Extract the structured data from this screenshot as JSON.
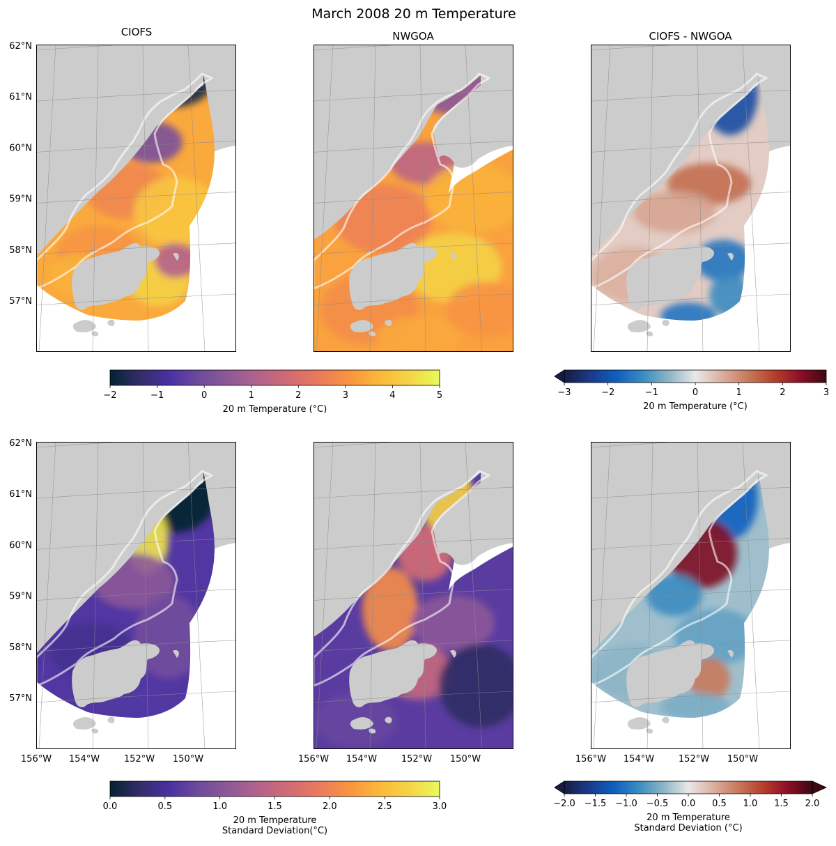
{
  "figure": {
    "title": "March 2008 20 m Temperature",
    "panel_titles": [
      "CIOFS",
      "NWGOA",
      "CIOFS - NWGOA"
    ]
  },
  "map_axes": {
    "lat_ticks": [
      "62°N",
      "61°N",
      "60°N",
      "59°N",
      "58°N",
      "57°N"
    ],
    "lon_ticks": [
      "156°W",
      "154°W",
      "152°W",
      "150°W"
    ],
    "land_color": "#cccccc",
    "grid_color": "#8c8c8c"
  },
  "panels": [
    {
      "id": "ciofs-mean",
      "row": 0,
      "col": 0,
      "region": "ciofs",
      "cmap": "thermal",
      "field": "mean"
    },
    {
      "id": "nwgoa-mean",
      "row": 0,
      "col": 1,
      "region": "nwgoa",
      "cmap": "thermal",
      "field": "mean"
    },
    {
      "id": "diff-mean",
      "row": 0,
      "col": 2,
      "region": "ciofs",
      "cmap": "balance",
      "field": "diff"
    },
    {
      "id": "ciofs-std",
      "row": 1,
      "col": 0,
      "region": "ciofs",
      "cmap": "thermal",
      "field": "std"
    },
    {
      "id": "nwgoa-std",
      "row": 1,
      "col": 1,
      "region": "nwgoa",
      "cmap": "thermal",
      "field": "std"
    },
    {
      "id": "diff-std",
      "row": 1,
      "col": 2,
      "region": "ciofs",
      "cmap": "balance",
      "field": "diffstd"
    }
  ],
  "chart_data": {
    "type": "heatmap",
    "title": "March 2008 20 m Temperature",
    "colorbars": [
      {
        "id": "mean",
        "label": [
          "20 m Temperature (°C)"
        ],
        "cmap": "thermal",
        "range": [
          -2,
          5
        ],
        "ticks": [
          "−2",
          "−1",
          "0",
          "1",
          "2",
          "3",
          "4",
          "5"
        ],
        "extend": "neither"
      },
      {
        "id": "diff",
        "label": [
          "20 m Temperature (°C)"
        ],
        "cmap": "balance",
        "range": [
          -3,
          3
        ],
        "ticks": [
          "−3",
          "−2",
          "−1",
          "0",
          "1",
          "2",
          "3"
        ],
        "extend": "min"
      },
      {
        "id": "std",
        "label": [
          "20 m Temperature",
          "Standard Deviation(°C)"
        ],
        "cmap": "thermal",
        "range": [
          0,
          3
        ],
        "ticks": [
          "0.0",
          "0.5",
          "1.0",
          "1.5",
          "2.0",
          "2.5",
          "3.0"
        ],
        "extend": "neither"
      },
      {
        "id": "diffstd",
        "label": [
          "20 m Temperature",
          "Standard Deviation (°C)"
        ],
        "cmap": "balance",
        "range": [
          -2,
          2
        ],
        "ticks": [
          "−2.0",
          "−1.5",
          "−1.0",
          "−0.5",
          "0.0",
          "0.5",
          "1.0",
          "1.5",
          "2.0"
        ],
        "extend": "both"
      }
    ],
    "colormaps": {
      "thermal": [
        "#04232f",
        "#332d6b",
        "#4b31a3",
        "#6f4c9c",
        "#915a97",
        "#b5638b",
        "#d26b73",
        "#ea7b5c",
        "#f89540",
        "#fbb83a",
        "#f4d546",
        "#e8fa5b"
      ],
      "balance": [
        "#181c43",
        "#1a3a8a",
        "#0e5fbe",
        "#3a8cc1",
        "#8db5c6",
        "#e8e8e8",
        "#dbb0a0",
        "#c77a5c",
        "#b5402b",
        "#8f0e27",
        "#3c0911"
      ]
    }
  }
}
